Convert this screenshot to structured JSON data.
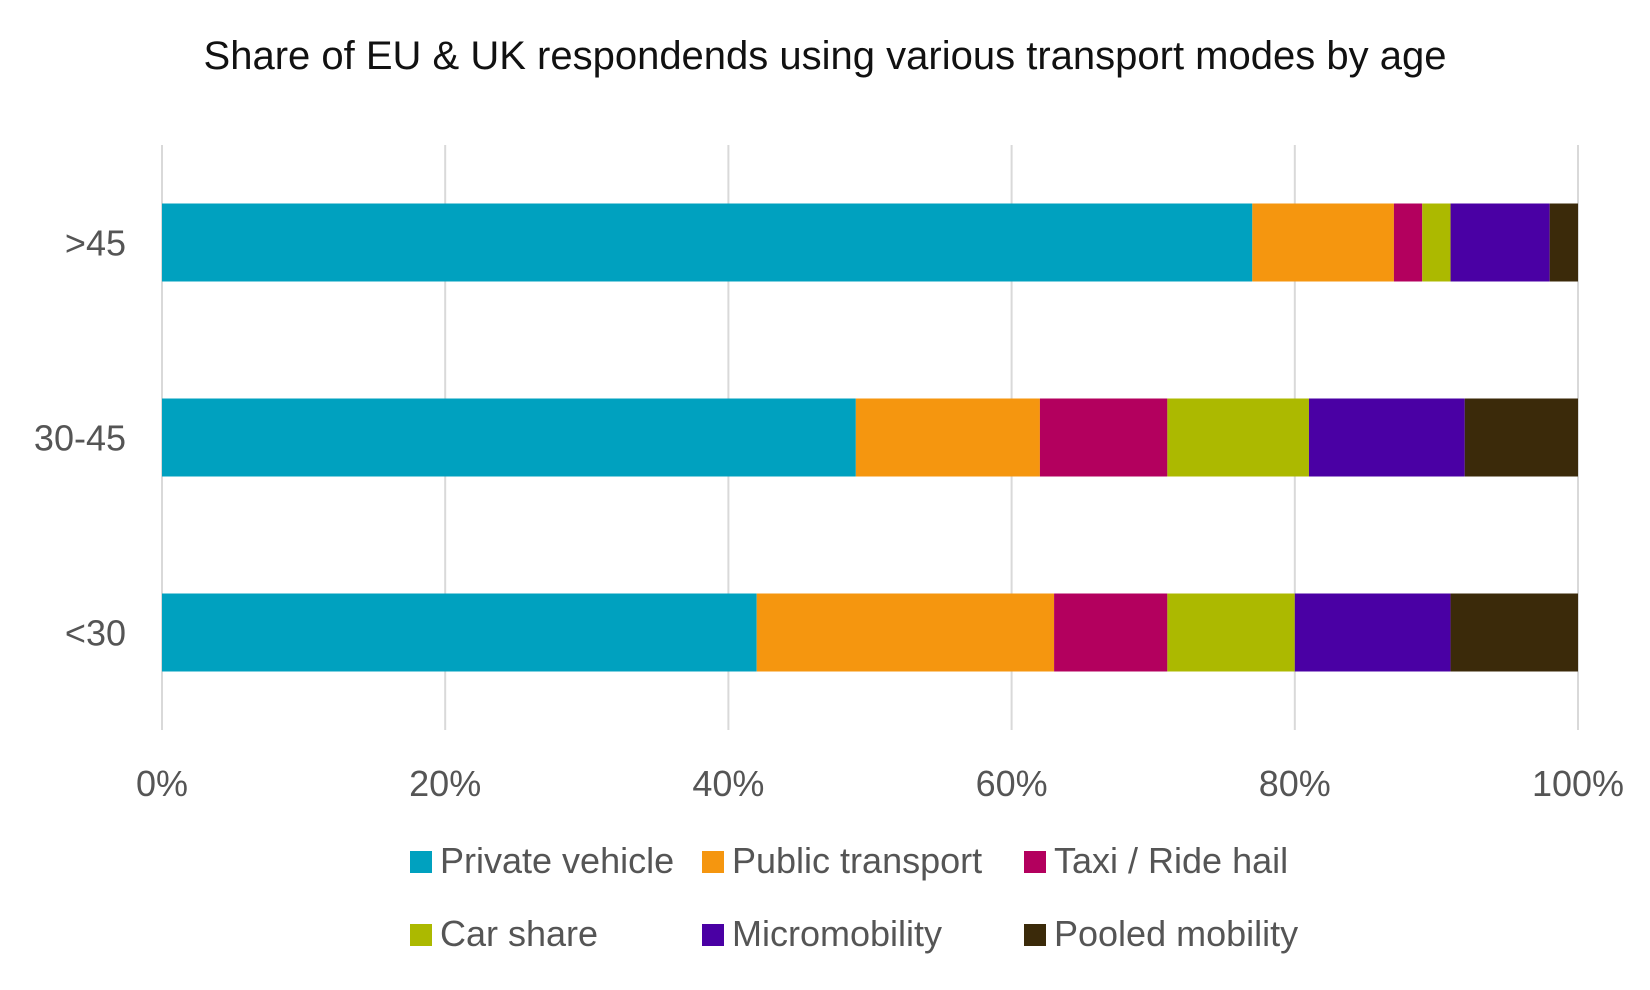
{
  "chart_data": {
    "type": "bar",
    "orientation": "horizontal",
    "stacked": "percent",
    "title": "Share of EU & UK respondends using various transport modes by age",
    "categories": [
      ">45",
      "30-45",
      "<30"
    ],
    "series": [
      {
        "name": "Private vehicle",
        "color": "#00a1bf",
        "values": [
          77,
          49,
          42
        ]
      },
      {
        "name": "Public transport",
        "color": "#f5960f",
        "values": [
          10,
          13,
          21
        ]
      },
      {
        "name": "Taxi / Ride hail",
        "color": "#b3005e",
        "values": [
          2,
          9,
          8
        ]
      },
      {
        "name": "Car share",
        "color": "#acb900",
        "values": [
          2,
          10,
          9
        ]
      },
      {
        "name": "Micromobility",
        "color": "#4a00a4",
        "values": [
          7,
          11,
          11
        ]
      },
      {
        "name": "Pooled mobility",
        "color": "#3b2a0a",
        "values": [
          2,
          8,
          9
        ]
      }
    ],
    "xlim": [
      0,
      100
    ],
    "xticks": [
      "0%",
      "20%",
      "40%",
      "60%",
      "80%",
      "100%"
    ],
    "xtick_values": [
      0,
      20,
      40,
      60,
      80,
      100
    ],
    "grid": "vertical",
    "legend": "bottom"
  }
}
